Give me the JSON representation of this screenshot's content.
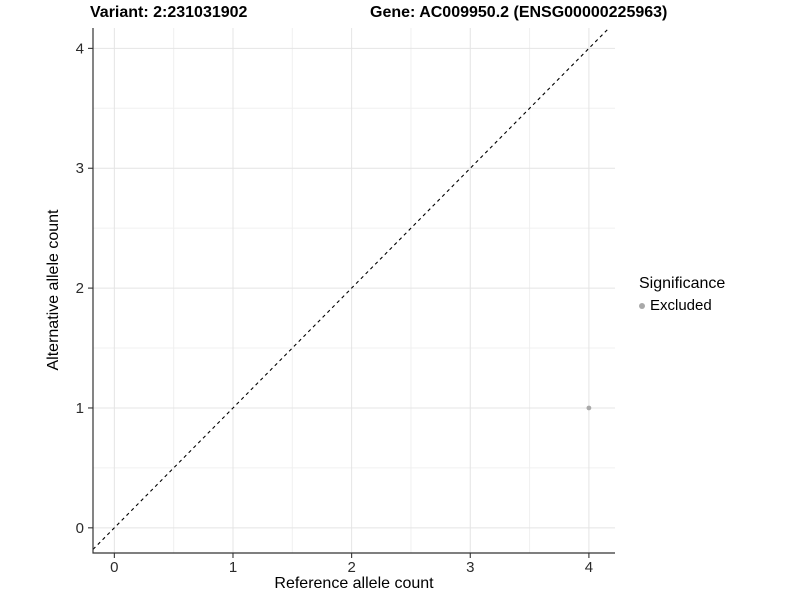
{
  "chart_data": {
    "type": "scatter",
    "title_left": "Variant: 2:231031902",
    "title_right": "Gene: AC009950.2 (ENSG00000225963)",
    "xlabel": "Reference allele count",
    "ylabel": "Alternative allele count",
    "xlim": [
      -0.18,
      4.22
    ],
    "ylim": [
      -0.21,
      4.17
    ],
    "x_ticks": [
      0,
      1,
      2,
      3,
      4
    ],
    "y_ticks": [
      0,
      1,
      2,
      3,
      4
    ],
    "x_minor_ticks": [
      0.5,
      1.5,
      2.5,
      3.5
    ],
    "y_minor_ticks": [
      0.5,
      1.5,
      2.5,
      3.5
    ],
    "grid": "major and minor gridlines on white background",
    "reference_line": {
      "kind": "identity y=x",
      "style": "dashed",
      "color": "#000000"
    },
    "series": [
      {
        "name": "Excluded",
        "color": "#A9A9A9",
        "marker": "circle",
        "points": [
          {
            "x": 4,
            "y": 1
          }
        ]
      }
    ],
    "legend": {
      "title": "Significance",
      "position": "right",
      "entries": [
        {
          "label": "Excluded",
          "color": "#A9A9A9"
        }
      ]
    }
  },
  "colors": {
    "background": "#FFFFFF",
    "grid_major": "#E4E4E4",
    "grid_minor": "#F0F0F0",
    "axis_line": "#333333",
    "tick_mark": "#333333",
    "tick_label": "#2B2B2B",
    "point": "#A9A9A9",
    "dashed_line": "#000000"
  }
}
